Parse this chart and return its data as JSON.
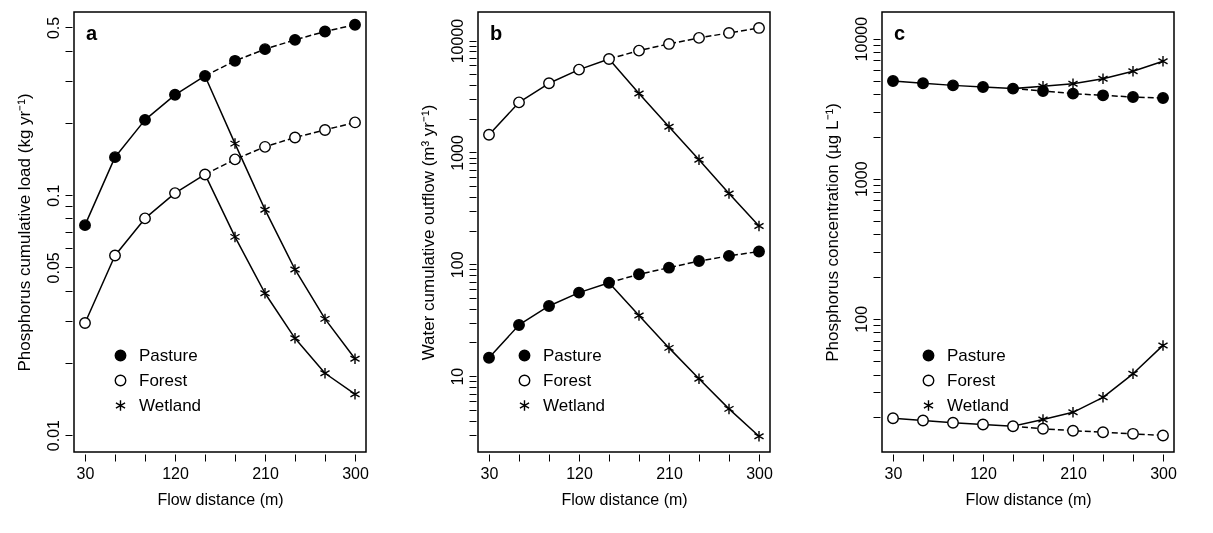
{
  "chart_data": [
    {
      "type": "line",
      "title": "a",
      "xlabel": "Flow distance (m)",
      "ylabel": "Phosphorus cumulative load  (kg yr⁻¹)",
      "log": "y",
      "legend": "bottom left",
      "x": [
        30,
        60,
        90,
        120,
        150,
        180,
        210,
        240,
        270,
        300
      ],
      "xlim": [
        19,
        311
      ],
      "xticks": [
        30,
        {
          "value": 60,
          "label": null
        },
        {
          "value": 90,
          "label": null
        },
        120,
        {
          "value": 150,
          "label": null
        },
        {
          "value": 180,
          "label": null
        },
        210,
        {
          "value": 240,
          "label": null
        },
        {
          "value": 270,
          "label": null
        },
        300
      ],
      "ylim": [
        0.0085,
        0.58
      ],
      "yticks": [
        0.01,
        {
          "value": 0.02,
          "label": null
        },
        {
          "value": 0.03,
          "label": null
        },
        {
          "value": 0.04,
          "label": null
        },
        0.05,
        {
          "value": 0.06,
          "label": null
        },
        {
          "value": 0.07,
          "label": null
        },
        {
          "value": 0.08,
          "label": null
        },
        {
          "value": 0.09,
          "label": null
        },
        0.1,
        {
          "value": 0.2,
          "label": null
        },
        {
          "value": 0.3,
          "label": null
        },
        {
          "value": 0.4,
          "label": null
        },
        0.5
      ],
      "series": [
        {
          "type": "line",
          "color": "#000000",
          "marker": "none",
          "line_style": "solid",
          "values": [
            0.075,
            0.144,
            0.206,
            0.262,
            0.314,
            null,
            null,
            null,
            null,
            null
          ]
        },
        {
          "type": "line",
          "color": "#000000",
          "marker": "none",
          "line_style": "dashed",
          "values": [
            null,
            null,
            null,
            null,
            0.314,
            0.363,
            0.406,
            0.444,
            0.481,
            0.513
          ]
        },
        {
          "type": "line",
          "color": "#000000",
          "marker": "none",
          "line_style": "solid",
          "values": [
            0.0293,
            0.056,
            0.08,
            0.102,
            0.122,
            null,
            null,
            null,
            null,
            null
          ]
        },
        {
          "type": "line",
          "color": "#000000",
          "marker": "none",
          "line_style": "dashed",
          "values": [
            null,
            null,
            null,
            null,
            0.122,
            0.141,
            0.159,
            0.174,
            0.187,
            0.201
          ]
        },
        {
          "type": "line",
          "color": "#000000",
          "marker": "none",
          "line_style": "solid",
          "values": [
            null,
            null,
            null,
            null,
            0.314,
            0.164,
            0.087,
            0.049,
            0.0305,
            0.0208
          ]
        },
        {
          "type": "line",
          "color": "#000000",
          "marker": "none",
          "line_style": "solid",
          "values": [
            null,
            null,
            null,
            null,
            0.122,
            0.067,
            0.039,
            0.0253,
            0.0181,
            0.0148
          ]
        },
        {
          "type": "scatter",
          "name": "Pasture",
          "color": "#000000",
          "marker": "circle",
          "values": [
            0.075,
            0.144,
            0.206,
            0.262,
            0.314,
            0.363,
            0.406,
            0.444,
            0.481,
            0.513
          ]
        },
        {
          "type": "scatter",
          "name": "Forest",
          "color": "#ffffff",
          "marker": "circle",
          "values": [
            0.0293,
            0.056,
            0.08,
            0.102,
            0.122,
            0.141,
            0.159,
            0.174,
            0.187,
            0.201
          ]
        },
        {
          "type": "scatter",
          "name": "Wetland",
          "color": "#000000",
          "marker": "cross",
          "values": [
            null,
            null,
            null,
            null,
            null,
            0.164,
            0.087,
            0.049,
            0.0305,
            0.0208
          ]
        },
        {
          "type": "scatter",
          "color": "#000000",
          "marker": "cross",
          "values": [
            null,
            null,
            null,
            null,
            null,
            0.067,
            0.039,
            0.0253,
            0.0181,
            0.0148
          ]
        }
      ]
    },
    {
      "type": "line",
      "title": "b",
      "xlabel": "Flow distance (m)",
      "ylabel": "Water cumulative outflow  (m³ yr⁻¹)",
      "log": "y",
      "legend": "bottom left",
      "x": [
        30,
        60,
        90,
        120,
        150,
        180,
        210,
        240,
        270,
        300
      ],
      "xlim": [
        19,
        311
      ],
      "xticks": [
        30,
        {
          "value": 60,
          "label": null
        },
        {
          "value": 90,
          "label": null
        },
        120,
        {
          "value": 150,
          "label": null
        },
        {
          "value": 180,
          "label": null
        },
        210,
        {
          "value": 240,
          "label": null
        },
        {
          "value": 270,
          "label": null
        },
        300
      ],
      "ylim": [
        2.1,
        18000
      ],
      "yticks": [
        {
          "value": 3,
          "label": null
        },
        {
          "value": 4,
          "label": null
        },
        {
          "value": 5,
          "label": null
        },
        {
          "value": 6,
          "label": null
        },
        {
          "value": 7,
          "label": null
        },
        {
          "value": 8,
          "label": null
        },
        {
          "value": 9,
          "label": null
        },
        10,
        {
          "value": 20,
          "label": null
        },
        {
          "value": 30,
          "label": null
        },
        {
          "value": 40,
          "label": null
        },
        {
          "value": 50,
          "label": null
        },
        {
          "value": 60,
          "label": null
        },
        {
          "value": 70,
          "label": null
        },
        {
          "value": 80,
          "label": null
        },
        {
          "value": 90,
          "label": null
        },
        100,
        {
          "value": 200,
          "label": null
        },
        {
          "value": 300,
          "label": null
        },
        {
          "value": 400,
          "label": null
        },
        {
          "value": 500,
          "label": null
        },
        {
          "value": 600,
          "label": null
        },
        {
          "value": 700,
          "label": null
        },
        {
          "value": 800,
          "label": null
        },
        {
          "value": 900,
          "label": null
        },
        1000,
        {
          "value": 2000,
          "label": null
        },
        {
          "value": 3000,
          "label": null
        },
        {
          "value": 4000,
          "label": null
        },
        {
          "value": 5000,
          "label": null
        },
        {
          "value": 6000,
          "label": null
        },
        {
          "value": 7000,
          "label": null
        },
        {
          "value": 8000,
          "label": null
        },
        {
          "value": 9000,
          "label": null
        },
        10000
      ],
      "series": [
        {
          "type": "line",
          "color": "#000000",
          "marker": "none",
          "line_style": "solid",
          "values": [
            1440,
            2800,
            4150,
            5500,
            6850,
            null,
            null,
            null,
            null,
            null
          ]
        },
        {
          "type": "line",
          "color": "#000000",
          "marker": "none",
          "line_style": "dashed",
          "values": [
            null,
            null,
            null,
            null,
            6850,
            8130,
            9330,
            10560,
            11700,
            12970
          ]
        },
        {
          "type": "line",
          "color": "#000000",
          "marker": "none",
          "line_style": "solid",
          "values": [
            14.6,
            28.7,
            42.4,
            55.8,
            68.5,
            null,
            null,
            null,
            null,
            null
          ]
        },
        {
          "type": "line",
          "color": "#000000",
          "marker": "none",
          "line_style": "dashed",
          "values": [
            null,
            null,
            null,
            null,
            68.5,
            81.4,
            93.3,
            107,
            119,
            130
          ]
        },
        {
          "type": "line",
          "color": "#000000",
          "marker": "none",
          "line_style": "solid",
          "values": [
            null,
            null,
            null,
            null,
            6850,
            3370,
            1700,
            860,
            430,
            220
          ]
        },
        {
          "type": "line",
          "color": "#000000",
          "marker": "none",
          "line_style": "solid",
          "values": [
            null,
            null,
            null,
            null,
            68.5,
            34.9,
            17.9,
            9.5,
            5.1,
            2.9
          ]
        },
        {
          "type": "scatter",
          "name": "Pasture",
          "color": "#000000",
          "marker": "circle",
          "values": [
            14.6,
            28.7,
            42.4,
            55.8,
            68.5,
            81.4,
            93.3,
            107,
            119,
            130
          ]
        },
        {
          "type": "scatter",
          "name": "Forest",
          "color": "#ffffff",
          "marker": "circle",
          "values": [
            1440,
            2800,
            4150,
            5500,
            6850,
            8130,
            9330,
            10560,
            11700,
            12970
          ]
        },
        {
          "type": "scatter",
          "name": "Wetland",
          "color": "#000000",
          "marker": "cross",
          "values": [
            null,
            null,
            null,
            null,
            null,
            3370,
            1700,
            860,
            430,
            220
          ]
        },
        {
          "type": "scatter",
          "color": "#000000",
          "marker": "cross",
          "values": [
            null,
            null,
            null,
            null,
            null,
            34.9,
            17.9,
            9.5,
            5.1,
            2.9
          ]
        }
      ]
    },
    {
      "type": "line",
      "title": "c",
      "xlabel": "Flow distance (m)",
      "ylabel": "Phosphorus concentration  (µg L⁻¹)",
      "log": "y",
      "legend": "bottom left",
      "x": [
        30,
        60,
        90,
        120,
        150,
        180,
        210,
        240,
        270,
        300
      ],
      "xlim": [
        19,
        311
      ],
      "xticks": [
        30,
        {
          "value": 60,
          "label": null
        },
        {
          "value": 90,
          "label": null
        },
        120,
        {
          "value": 150,
          "label": null
        },
        {
          "value": 180,
          "label": null
        },
        210,
        {
          "value": 240,
          "label": null
        },
        {
          "value": 270,
          "label": null
        },
        300
      ],
      "ylim": [
        11.2,
        15500
      ],
      "yticks": [
        {
          "value": 20,
          "label": null
        },
        {
          "value": 30,
          "label": null
        },
        {
          "value": 40,
          "label": null
        },
        {
          "value": 50,
          "label": null
        },
        {
          "value": 60,
          "label": null
        },
        {
          "value": 70,
          "label": null
        },
        {
          "value": 80,
          "label": null
        },
        {
          "value": 90,
          "label": null
        },
        100,
        {
          "value": 200,
          "label": null
        },
        {
          "value": 300,
          "label": null
        },
        {
          "value": 400,
          "label": null
        },
        {
          "value": 500,
          "label": null
        },
        {
          "value": 600,
          "label": null
        },
        {
          "value": 700,
          "label": null
        },
        {
          "value": 800,
          "label": null
        },
        {
          "value": 900,
          "label": null
        },
        1000,
        {
          "value": 2000,
          "label": null
        },
        {
          "value": 3000,
          "label": null
        },
        {
          "value": 4000,
          "label": null
        },
        {
          "value": 5000,
          "label": null
        },
        {
          "value": 6000,
          "label": null
        },
        {
          "value": 7000,
          "label": null
        },
        {
          "value": 8000,
          "label": null
        },
        {
          "value": 9000,
          "label": null
        },
        10000
      ],
      "series": [
        {
          "type": "line",
          "color": "#000000",
          "marker": "none",
          "line_style": "solid",
          "values": [
            4990,
            4800,
            4640,
            4520,
            4400,
            null,
            null,
            null,
            null,
            null
          ]
        },
        {
          "type": "line",
          "color": "#000000",
          "marker": "none",
          "line_style": "dashed",
          "values": [
            null,
            null,
            null,
            null,
            4400,
            4230,
            4050,
            3940,
            3830,
            3770
          ]
        },
        {
          "type": "line",
          "color": "#000000",
          "marker": "none",
          "line_style": "solid",
          "values": [
            19.5,
            18.8,
            18.1,
            17.6,
            17.1,
            null,
            null,
            null,
            null,
            null
          ]
        },
        {
          "type": "line",
          "color": "#000000",
          "marker": "none",
          "line_style": "dashed",
          "values": [
            null,
            null,
            null,
            null,
            17.1,
            16.4,
            15.9,
            15.5,
            15.1,
            14.7
          ]
        },
        {
          "type": "line",
          "color": "#000000",
          "marker": "none",
          "line_style": "solid",
          "values": [
            null,
            null,
            null,
            null,
            4400,
            4570,
            4770,
            5170,
            5850,
            6890
          ]
        },
        {
          "type": "line",
          "color": "#000000",
          "marker": "none",
          "line_style": "solid",
          "values": [
            null,
            null,
            null,
            null,
            17.1,
            19.1,
            21.5,
            27.5,
            40.5,
            64.6
          ]
        },
        {
          "type": "scatter",
          "name": "Pasture",
          "color": "#000000",
          "marker": "circle",
          "values": [
            4990,
            4800,
            4640,
            4520,
            4400,
            4230,
            4050,
            3940,
            3830,
            3770
          ]
        },
        {
          "type": "scatter",
          "name": "Forest",
          "color": "#ffffff",
          "marker": "circle",
          "values": [
            19.5,
            18.8,
            18.1,
            17.6,
            17.1,
            16.4,
            15.9,
            15.5,
            15.1,
            14.7
          ]
        },
        {
          "type": "scatter",
          "name": "Wetland",
          "color": "#000000",
          "marker": "cross",
          "values": [
            null,
            null,
            null,
            null,
            null,
            4570,
            4770,
            5170,
            5850,
            6890
          ]
        },
        {
          "type": "scatter",
          "color": "#000000",
          "marker": "cross",
          "values": [
            null,
            null,
            null,
            null,
            null,
            19.1,
            21.5,
            27.5,
            40.5,
            64.6
          ]
        }
      ]
    }
  ]
}
